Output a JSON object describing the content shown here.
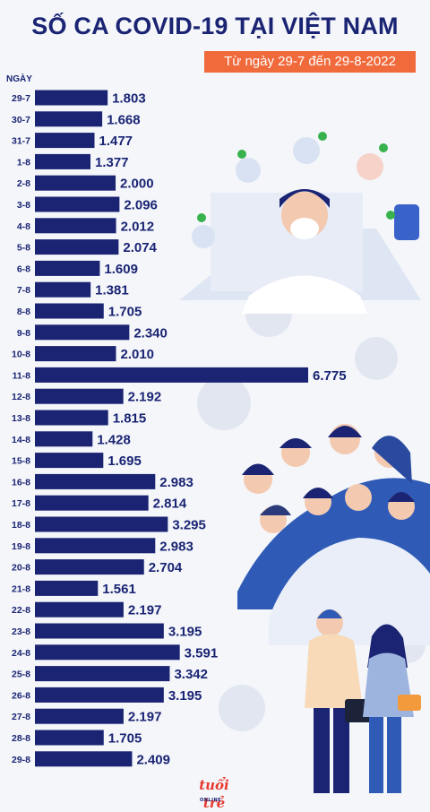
{
  "header": {
    "title": "SỐ CA COVID-19 TẠI VIỆT NAM",
    "subtitle": "Từ ngày 29-7 đến 29-8-2022"
  },
  "chart_data": {
    "type": "bar",
    "orientation": "horizontal",
    "ylabel": "NGÀY",
    "categories": [
      "29-7",
      "30-7",
      "31-7",
      "1-8",
      "2-8",
      "3-8",
      "4-8",
      "5-8",
      "6-8",
      "7-8",
      "8-8",
      "9-8",
      "10-8",
      "11-8",
      "12-8",
      "13-8",
      "14-8",
      "15-8",
      "16-8",
      "17-8",
      "18-8",
      "19-8",
      "20-8",
      "21-8",
      "22-8",
      "23-8",
      "24-8",
      "25-8",
      "26-8",
      "27-8",
      "28-8",
      "29-8"
    ],
    "values": [
      1803,
      1668,
      1477,
      1377,
      2000,
      2096,
      2012,
      2074,
      1609,
      1381,
      1705,
      2340,
      2010,
      6775,
      2192,
      1815,
      1428,
      1695,
      2983,
      2814,
      3295,
      2983,
      2704,
      1561,
      2197,
      3195,
      3591,
      3342,
      3195,
      2197,
      1705,
      2409
    ],
    "value_labels": [
      "1.803",
      "1.668",
      "1.477",
      "1.377",
      "2.000",
      "2.096",
      "2.012",
      "2.074",
      "1.609",
      "1.381",
      "1.705",
      "2.340",
      "2.010",
      "6.775",
      "2.192",
      "1.815",
      "1.428",
      "1.695",
      "2.983",
      "2.814",
      "3.295",
      "2.983",
      "2.704",
      "1.561",
      "2.197",
      "3.195",
      "3.591",
      "3.342",
      "3.195",
      "2.197",
      "1.705",
      "2.409"
    ],
    "bar_color": "#1a2473",
    "grid": false
  },
  "logo": {
    "text": "tuổi trẻ",
    "sub": "ONLINE"
  },
  "colors": {
    "title": "#1a2473",
    "badge": "#f06a3c",
    "background": "#f4f6fa"
  }
}
